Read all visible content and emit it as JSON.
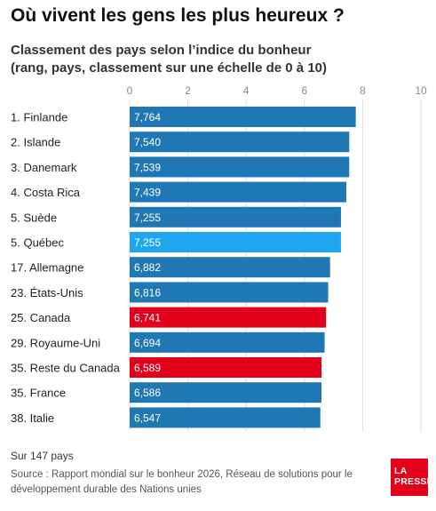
{
  "title": "Où vivent les gens les plus heureux ?",
  "subtitle_line1": "Classement des pays selon l’indice du bonheur",
  "subtitle_line2": "(rang, pays, classement sur une échelle de 0 à 10)",
  "note": "Sur 147 pays",
  "source": "Source : Rapport mondial sur le bonheur 2026, Réseau de solutions pour le développement durable des Nations unies",
  "logo": {
    "line1": "LA",
    "line2": "PRESSE"
  },
  "colors": {
    "default": "#1f77b4",
    "quebec": "#1ea7f0",
    "canada": "#e3001b",
    "grid": "#dcdcdc",
    "axis_text": "#888888"
  },
  "chart_data": {
    "type": "bar",
    "orientation": "horizontal",
    "xlim": [
      0,
      10
    ],
    "x_ticks": [
      "0",
      "2",
      "4",
      "6",
      "8",
      "10"
    ],
    "x_tick_values": [
      0,
      2,
      4,
      6,
      8,
      10
    ],
    "grid": true,
    "categories": [
      "1. Finlande",
      "2. Islande",
      "3. Danemark",
      "4. Costa Rica",
      "5. Suède",
      "5. Québec",
      "17. Allemagne",
      "23. États-Unis",
      "25. Canada",
      "29. Royaume-Uni",
      "35. Reste du Canada",
      "35. France",
      "38. Italie"
    ],
    "values": [
      7.764,
      7.54,
      7.539,
      7.439,
      7.255,
      7.255,
      6.882,
      6.816,
      6.741,
      6.694,
      6.589,
      6.586,
      6.547
    ],
    "value_labels": [
      "7,764",
      "7,540",
      "7,539",
      "7,439",
      "7,255",
      "7,255",
      "6,882",
      "6,816",
      "6,741",
      "6,694",
      "6,589",
      "6,586",
      "6,547"
    ],
    "bar_colors": [
      "default",
      "default",
      "default",
      "default",
      "default",
      "quebec",
      "default",
      "default",
      "canada",
      "default",
      "canada",
      "default",
      "default"
    ]
  }
}
